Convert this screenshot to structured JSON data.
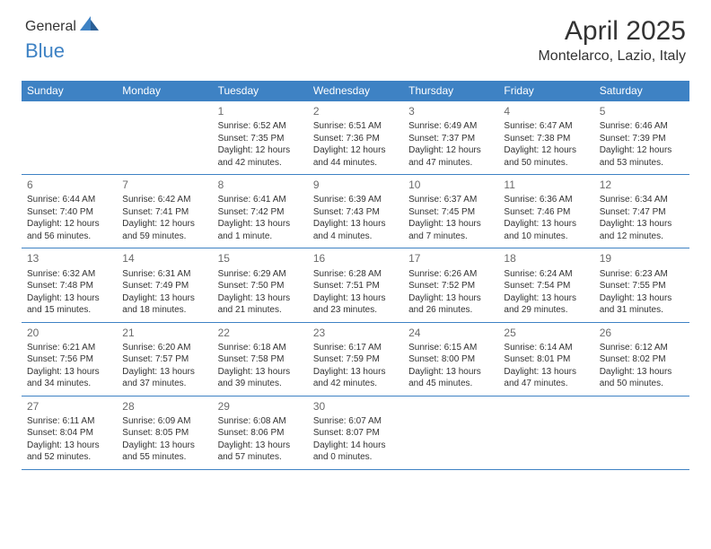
{
  "brand": {
    "part1": "General",
    "part2": "Blue"
  },
  "title": "April 2025",
  "location": "Montelarco, Lazio, Italy",
  "colors": {
    "accent": "#3e82c4",
    "header_text": "#ffffff",
    "body_text": "#333333",
    "muted": "#6b6b6b",
    "background": "#ffffff"
  },
  "day_headers": [
    "Sunday",
    "Monday",
    "Tuesday",
    "Wednesday",
    "Thursday",
    "Friday",
    "Saturday"
  ],
  "weeks": [
    [
      null,
      null,
      {
        "n": "1",
        "sunrise": "6:52 AM",
        "sunset": "7:35 PM",
        "daylight": "12 hours and 42 minutes."
      },
      {
        "n": "2",
        "sunrise": "6:51 AM",
        "sunset": "7:36 PM",
        "daylight": "12 hours and 44 minutes."
      },
      {
        "n": "3",
        "sunrise": "6:49 AM",
        "sunset": "7:37 PM",
        "daylight": "12 hours and 47 minutes."
      },
      {
        "n": "4",
        "sunrise": "6:47 AM",
        "sunset": "7:38 PM",
        "daylight": "12 hours and 50 minutes."
      },
      {
        "n": "5",
        "sunrise": "6:46 AM",
        "sunset": "7:39 PM",
        "daylight": "12 hours and 53 minutes."
      }
    ],
    [
      {
        "n": "6",
        "sunrise": "6:44 AM",
        "sunset": "7:40 PM",
        "daylight": "12 hours and 56 minutes."
      },
      {
        "n": "7",
        "sunrise": "6:42 AM",
        "sunset": "7:41 PM",
        "daylight": "12 hours and 59 minutes."
      },
      {
        "n": "8",
        "sunrise": "6:41 AM",
        "sunset": "7:42 PM",
        "daylight": "13 hours and 1 minute."
      },
      {
        "n": "9",
        "sunrise": "6:39 AM",
        "sunset": "7:43 PM",
        "daylight": "13 hours and 4 minutes."
      },
      {
        "n": "10",
        "sunrise": "6:37 AM",
        "sunset": "7:45 PM",
        "daylight": "13 hours and 7 minutes."
      },
      {
        "n": "11",
        "sunrise": "6:36 AM",
        "sunset": "7:46 PM",
        "daylight": "13 hours and 10 minutes."
      },
      {
        "n": "12",
        "sunrise": "6:34 AM",
        "sunset": "7:47 PM",
        "daylight": "13 hours and 12 minutes."
      }
    ],
    [
      {
        "n": "13",
        "sunrise": "6:32 AM",
        "sunset": "7:48 PM",
        "daylight": "13 hours and 15 minutes."
      },
      {
        "n": "14",
        "sunrise": "6:31 AM",
        "sunset": "7:49 PM",
        "daylight": "13 hours and 18 minutes."
      },
      {
        "n": "15",
        "sunrise": "6:29 AM",
        "sunset": "7:50 PM",
        "daylight": "13 hours and 21 minutes."
      },
      {
        "n": "16",
        "sunrise": "6:28 AM",
        "sunset": "7:51 PM",
        "daylight": "13 hours and 23 minutes."
      },
      {
        "n": "17",
        "sunrise": "6:26 AM",
        "sunset": "7:52 PM",
        "daylight": "13 hours and 26 minutes."
      },
      {
        "n": "18",
        "sunrise": "6:24 AM",
        "sunset": "7:54 PM",
        "daylight": "13 hours and 29 minutes."
      },
      {
        "n": "19",
        "sunrise": "6:23 AM",
        "sunset": "7:55 PM",
        "daylight": "13 hours and 31 minutes."
      }
    ],
    [
      {
        "n": "20",
        "sunrise": "6:21 AM",
        "sunset": "7:56 PM",
        "daylight": "13 hours and 34 minutes."
      },
      {
        "n": "21",
        "sunrise": "6:20 AM",
        "sunset": "7:57 PM",
        "daylight": "13 hours and 37 minutes."
      },
      {
        "n": "22",
        "sunrise": "6:18 AM",
        "sunset": "7:58 PM",
        "daylight": "13 hours and 39 minutes."
      },
      {
        "n": "23",
        "sunrise": "6:17 AM",
        "sunset": "7:59 PM",
        "daylight": "13 hours and 42 minutes."
      },
      {
        "n": "24",
        "sunrise": "6:15 AM",
        "sunset": "8:00 PM",
        "daylight": "13 hours and 45 minutes."
      },
      {
        "n": "25",
        "sunrise": "6:14 AM",
        "sunset": "8:01 PM",
        "daylight": "13 hours and 47 minutes."
      },
      {
        "n": "26",
        "sunrise": "6:12 AM",
        "sunset": "8:02 PM",
        "daylight": "13 hours and 50 minutes."
      }
    ],
    [
      {
        "n": "27",
        "sunrise": "6:11 AM",
        "sunset": "8:04 PM",
        "daylight": "13 hours and 52 minutes."
      },
      {
        "n": "28",
        "sunrise": "6:09 AM",
        "sunset": "8:05 PM",
        "daylight": "13 hours and 55 minutes."
      },
      {
        "n": "29",
        "sunrise": "6:08 AM",
        "sunset": "8:06 PM",
        "daylight": "13 hours and 57 minutes."
      },
      {
        "n": "30",
        "sunrise": "6:07 AM",
        "sunset": "8:07 PM",
        "daylight": "14 hours and 0 minutes."
      },
      null,
      null,
      null
    ]
  ],
  "labels": {
    "sunrise": "Sunrise:",
    "sunset": "Sunset:",
    "daylight": "Daylight:"
  }
}
